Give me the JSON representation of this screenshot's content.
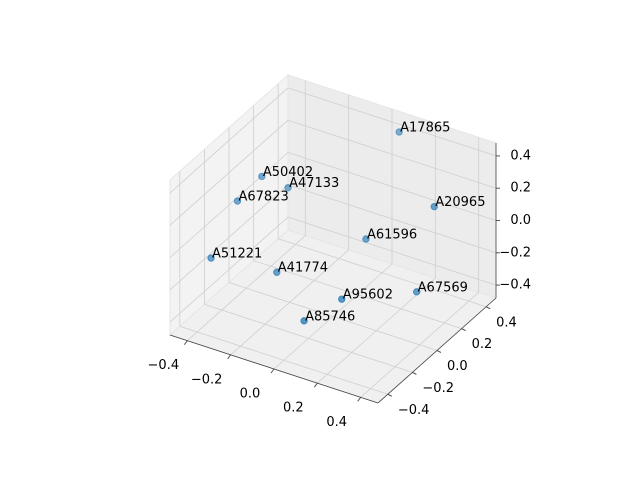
{
  "chart_data": {
    "type": "scatter3d",
    "labels": [
      "A17865",
      "A50402",
      "A47133",
      "A67823",
      "A20965",
      "A61596",
      "A51221",
      "A41774",
      "A95602",
      "A67569",
      "A85746"
    ],
    "x": [
      0.05,
      -0.3,
      -0.23,
      -0.35,
      0.28,
      0.05,
      -0.37,
      -0.18,
      0.08,
      0.25,
      -0.02
    ],
    "y": [
      0.45,
      -0.05,
      0.04,
      -0.16,
      0.33,
      0.18,
      -0.34,
      -0.14,
      -0.07,
      0.24,
      -0.2
    ],
    "z": [
      0.38,
      0.29,
      0.19,
      0.19,
      0.1,
      -0.1,
      -0.05,
      -0.19,
      -0.29,
      -0.38,
      -0.38
    ],
    "color": "#1f77b4",
    "xlim": [
      -0.48,
      0.48
    ],
    "ylim": [
      -0.48,
      0.48
    ],
    "zlim": [
      -0.48,
      0.48
    ],
    "xticks": [
      {
        "value": -0.4,
        "label": "−0.4"
      },
      {
        "value": -0.2,
        "label": "−0.2"
      },
      {
        "value": 0,
        "label": "0.0"
      },
      0.2,
      0.4
    ],
    "yticks": [
      {
        "value": -0.4,
        "label": "−0.4"
      },
      {
        "value": -0.2,
        "label": "−0.2"
      },
      {
        "value": 0,
        "label": "0.0"
      },
      0.2,
      0.4
    ],
    "zticks": [
      {
        "value": -0.4,
        "label": "−0.4"
      },
      {
        "value": -0.2,
        "label": "−0.2"
      },
      {
        "value": 0,
        "label": "0.0"
      },
      0.2,
      0.4
    ],
    "grid": true
  }
}
